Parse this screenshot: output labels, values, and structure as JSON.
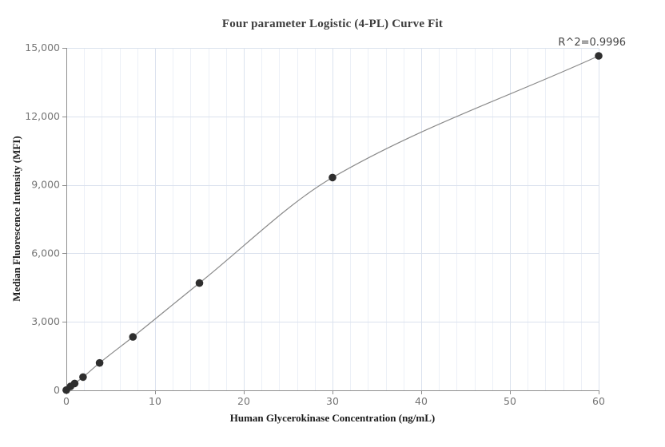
{
  "chart_data": {
    "type": "scatter",
    "title": "Four parameter Logistic (4-PL) Curve Fit",
    "xlabel": "Human Glycerokinase Concentration (ng/mL)",
    "ylabel": "Median Fluorescence Intensity (MFI)",
    "annotation": "R^2=0.9996",
    "fit": {
      "type": "4PL",
      "r_squared": 0.9996
    },
    "series": [
      {
        "name": "standard-curve-points",
        "x": [
          0,
          0.47,
          0.94,
          1.88,
          3.75,
          7.5,
          15,
          30,
          60
        ],
        "y": [
          10,
          170,
          300,
          580,
          1200,
          2340,
          4700,
          9320,
          14650
        ]
      }
    ],
    "xlim": [
      0,
      60
    ],
    "ylim": [
      0,
      15000
    ],
    "x_ticks": {
      "values": [
        0,
        10,
        20,
        30,
        40,
        50,
        60
      ],
      "labels": [
        "0",
        "10",
        "20",
        "30",
        "40",
        "50",
        "60"
      ]
    },
    "y_ticks": {
      "values": [
        0,
        3000,
        6000,
        9000,
        12000,
        15000
      ],
      "labels": [
        "0",
        "3,000",
        "6,000",
        "9,000",
        "12,000",
        "15,000"
      ]
    },
    "x_minor_grid_step": 2,
    "grid": true,
    "legend": false,
    "colors": {
      "point": "#2e2e2e",
      "curve": "#8a8a8a",
      "axis": "#8f8f8f",
      "tick_label": "#757575",
      "grid_major": "#dbe2ee",
      "grid_minor": "#ecf0f7",
      "title": "#3d3d3d",
      "axis_title": "#1a1a1a",
      "annotation": "#454545"
    }
  }
}
